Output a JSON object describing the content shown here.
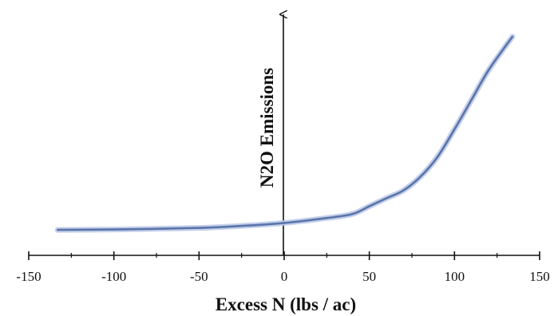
{
  "chart_data": {
    "type": "line",
    "title": "",
    "xlabel": "Excess N (lbs / ac)",
    "ylabel": "N2O Emissions",
    "xlim": [
      -150,
      150
    ],
    "x_ticks_major": [
      -150,
      -100,
      -50,
      0,
      50,
      100,
      150
    ],
    "x_tick_labels": [
      "-150",
      "-100",
      "-50",
      "0",
      "50",
      "100",
      "150"
    ],
    "x_ticks_minor": [
      -125,
      -75,
      -25,
      25,
      75,
      125
    ],
    "y_ticks": [],
    "series": [
      {
        "color": "#5a74aa",
        "glow_color": "#b9c7e6",
        "points": [
          [
            -133,
            0.02
          ],
          [
            -100,
            0.022
          ],
          [
            -50,
            0.03
          ],
          [
            -25,
            0.04
          ],
          [
            0,
            0.055
          ],
          [
            25,
            0.08
          ],
          [
            40,
            0.1
          ],
          [
            50,
            0.14
          ],
          [
            60,
            0.18
          ],
          [
            70,
            0.22
          ],
          [
            80,
            0.29
          ],
          [
            90,
            0.39
          ],
          [
            100,
            0.53
          ],
          [
            110,
            0.68
          ],
          [
            120,
            0.83
          ],
          [
            134,
            1.0
          ]
        ]
      }
    ]
  }
}
